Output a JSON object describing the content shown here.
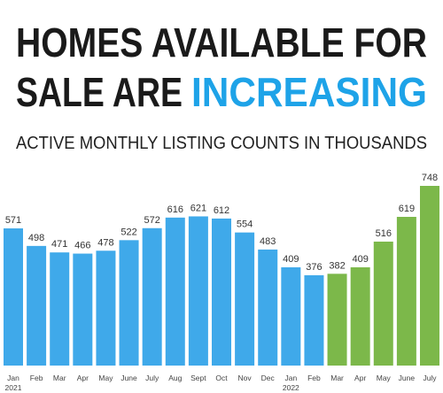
{
  "chart_data": {
    "type": "bar",
    "title_lines": [
      "HOMES AVAILABLE FOR",
      "SALE ARE"
    ],
    "title_highlight": "INCREASING",
    "subtitle": "ACTIVE MONTHLY LISTING COUNTS IN THOUSANDS",
    "categories": [
      "Jan",
      "Feb",
      "Mar",
      "Apr",
      "May",
      "June",
      "July",
      "Aug",
      "Sept",
      "Oct",
      "Nov",
      "Dec",
      "Jan",
      "Feb",
      "Mar",
      "Apr",
      "May",
      "June",
      "July"
    ],
    "category_years": [
      "2021",
      null,
      null,
      null,
      null,
      null,
      null,
      null,
      null,
      null,
      null,
      null,
      "2022",
      null,
      null,
      null,
      null,
      null,
      null
    ],
    "values": [
      571,
      498,
      471,
      466,
      478,
      522,
      572,
      616,
      621,
      612,
      554,
      483,
      409,
      376,
      382,
      409,
      516,
      619,
      748
    ],
    "colors": [
      "#3fa9ea",
      "#3fa9ea",
      "#3fa9ea",
      "#3fa9ea",
      "#3fa9ea",
      "#3fa9ea",
      "#3fa9ea",
      "#3fa9ea",
      "#3fa9ea",
      "#3fa9ea",
      "#3fa9ea",
      "#3fa9ea",
      "#3fa9ea",
      "#3fa9ea",
      "#7cb84a",
      "#7cb84a",
      "#7cb84a",
      "#7cb84a",
      "#7cb84a"
    ],
    "highlight_color": "#1ea3e8"
  }
}
